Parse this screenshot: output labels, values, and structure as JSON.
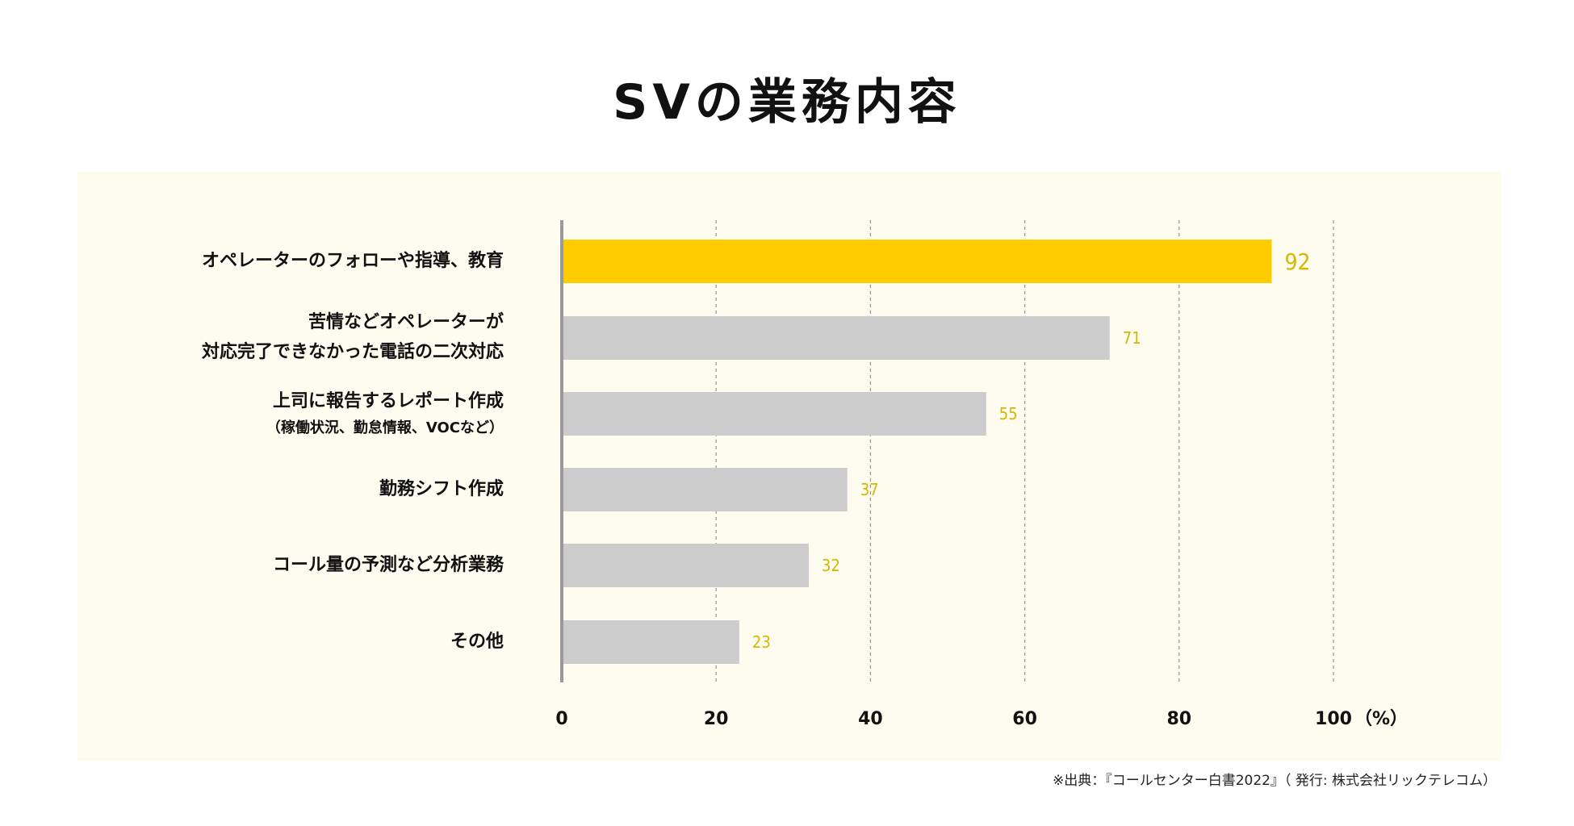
{
  "chart_data": {
    "type": "bar",
    "orientation": "horizontal",
    "title": "SVの業務内容",
    "categories": [
      [
        "オペレーターのフォローや指導、教育"
      ],
      [
        "苦情などオペレーターが",
        "対応完了できなかった電話の二次対応"
      ],
      [
        "上司に報告するレポート作成",
        "（稼働状況、勤怠情報、VOCなど）"
      ],
      [
        "勤務シフト作成"
      ],
      [
        "コール量の予測など分析業務"
      ],
      [
        "その他"
      ]
    ],
    "values": [
      92,
      71,
      55,
      37,
      32,
      23
    ],
    "xlim": [
      0,
      100
    ],
    "xticks": [
      0,
      20,
      40,
      60,
      80,
      100
    ],
    "xunit": "（%）",
    "grid": true,
    "highlight_index": 0
  },
  "source_note": "※出典：『コールセンター白書2022』（ 発行: 株式会社リックテレコム）",
  "colors": {
    "highlight": "#ffcc00",
    "bar": "#cccccc",
    "value_label": "#d6b600",
    "axis": "#9a9a9a",
    "grid": "#9a9a9a",
    "panel": "#fdfcef"
  }
}
